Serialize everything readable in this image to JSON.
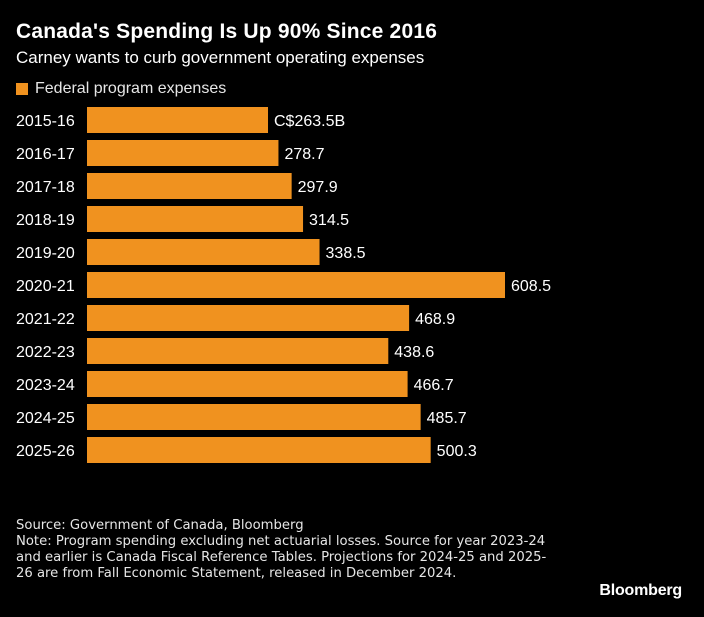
{
  "chart_data": {
    "type": "bar",
    "orientation": "horizontal",
    "title": "Canada's Spending Is Up 90% Since 2016",
    "subtitle": "Carney wants to curb government operating expenses",
    "legend": [
      {
        "name": "Federal program expenses",
        "color": "#f0921f"
      }
    ],
    "categories": [
      "2015-16",
      "2016-17",
      "2017-18",
      "2018-19",
      "2019-20",
      "2020-21",
      "2021-22",
      "2022-23",
      "2023-24",
      "2024-25",
      "2025-26"
    ],
    "series": [
      {
        "name": "Federal program expenses",
        "values": [
          263.5,
          278.7,
          297.9,
          314.5,
          338.5,
          608.5,
          468.9,
          438.6,
          466.7,
          485.7,
          500.3
        ]
      }
    ],
    "value_labels": [
      "C$263.5B",
      "278.7",
      "297.9",
      "314.5",
      "338.5",
      "608.5",
      "468.9",
      "438.6",
      "466.7",
      "485.7",
      "500.3"
    ],
    "xlim": [
      0,
      608.5
    ],
    "grid": false,
    "legend_position": "top-left"
  },
  "footer": {
    "source": "Source: Government of Canada, Bloomberg",
    "note": "Note: Program spending excluding net actuarial losses. Source for year 2023-24 and earlier is Canada Fiscal Reference Tables. Projections for 2024-25 and 2025-26 are from Fall Economic Statement, released in December 2024."
  },
  "brand": "Bloomberg",
  "colors": {
    "bar": "#f0921f",
    "background": "#000000",
    "text": "#ffffff"
  }
}
